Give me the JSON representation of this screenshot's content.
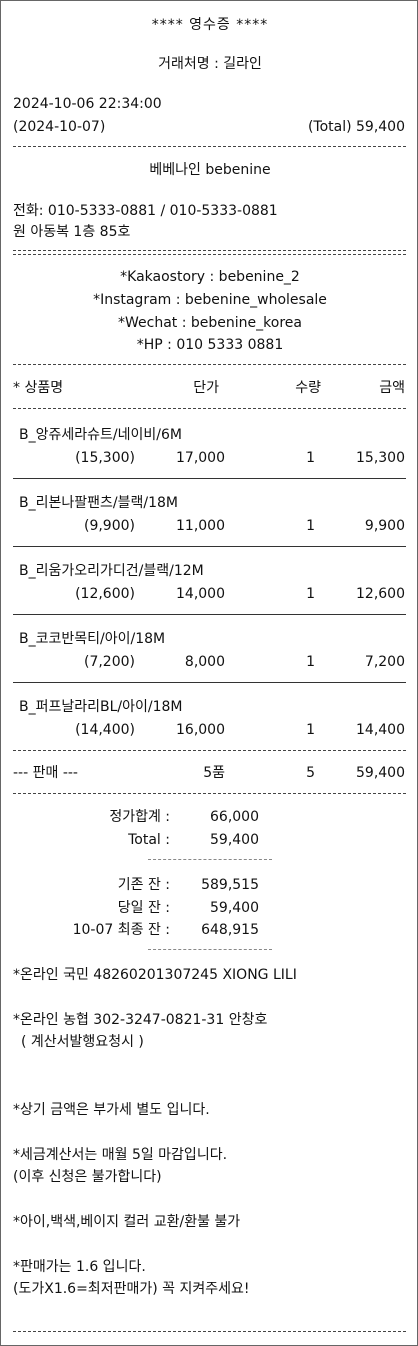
{
  "header": {
    "title": "****  영수증  ****",
    "client": "거래처명 : 길라인",
    "datetime": "2024-10-06 22:34:00",
    "date2": "(2024-10-07)",
    "total": "(Total) 59,400"
  },
  "shop": {
    "name": "베베나인 bebenine",
    "phone": "전화: 010-5333-0881 / 010-5333-0881",
    "address": "원 아동복 1층 85호"
  },
  "social": [
    "*Kakaostory : bebenine_2",
    "*Instagram : bebenine_wholesale",
    "*Wechat : bebenine_korea",
    "*HP : 010 5333 0881"
  ],
  "columns": {
    "name": "*  상품명",
    "price": "단가",
    "qty": "수량",
    "amount": "금액"
  },
  "items": [
    {
      "name": "B_앙쥬세라슈트/네이비/6M",
      "cost": "(15,300)",
      "price": "17,000",
      "qty": "1",
      "amount": "15,300"
    },
    {
      "name": "B_리본나팔팬츠/블랙/18M",
      "cost": "(9,900)",
      "price": "11,000",
      "qty": "1",
      "amount": "9,900"
    },
    {
      "name": "B_리움가오리가디건/블랙/12M",
      "cost": "(12,600)",
      "price": "14,000",
      "qty": "1",
      "amount": "12,600"
    },
    {
      "name": "B_코코반목티/아이/18M",
      "cost": "(7,200)",
      "price": "8,000",
      "qty": "1",
      "amount": "7,200"
    },
    {
      "name": "B_퍼프날라리BL/아이/18M",
      "cost": "(14,400)",
      "price": "16,000",
      "qty": "1",
      "amount": "14,400"
    }
  ],
  "summary": {
    "label": "--- 판매 ---",
    "count": "5품",
    "qty": "5",
    "amount": "59,400"
  },
  "totals": [
    {
      "label": "정가합계 :",
      "value": "66,000"
    },
    {
      "label": "Total :",
      "value": "59,400"
    }
  ],
  "balances": [
    {
      "label": "기존 잔 :",
      "value": "589,515"
    },
    {
      "label": "당일 잔 :",
      "value": "59,400"
    },
    {
      "label": "10-07 최종 잔 :",
      "value": "648,915"
    }
  ],
  "notes": {
    "bank1": "*온라인 국민 48260201307245 XIONG LILI",
    "bank2": "*온라인 농협 302-3247-0821-31 안창호",
    "bank2_sub": "( 계산서발행요청시 )",
    "vat": "*상기 금액은 부가세 별도 입니다.",
    "tax": "*세금계산서는 매월 5일 마감입니다.",
    "tax_sub": "(이후 신청은 불가합니다)",
    "color": "*아이,백색,베이지 컬러 교환/환불 불가",
    "price": "*판매가는 1.6 입니다.",
    "price_sub": "(도가X1.6=최저판매가) 꼭 지켜주세요!"
  }
}
